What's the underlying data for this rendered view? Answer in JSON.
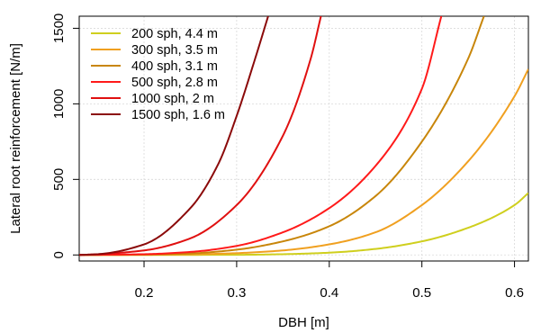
{
  "chart_data": {
    "type": "line",
    "title": "",
    "xlabel": "DBH [m]",
    "ylabel": "Lateral root reinforcement [N/m]",
    "xlim": [
      0.13,
      0.615
    ],
    "ylim": [
      -40,
      1580
    ],
    "x_ticks": [
      0.2,
      0.3,
      0.4,
      0.5,
      0.6
    ],
    "y_ticks": [
      0,
      500,
      1000,
      1500
    ],
    "grid": true,
    "legend_position": "top-left",
    "series": [
      {
        "name": "200 sph, 4.4 m",
        "color": "#cfcf1e",
        "x": [
          0.13,
          0.3,
          0.35,
          0.4,
          0.45,
          0.5,
          0.55,
          0.6,
          0.615
        ],
        "y": [
          0,
          1,
          5,
          15,
          40,
          90,
          180,
          330,
          410
        ]
      },
      {
        "name": "300 sph, 3.5 m",
        "color": "#f0a020",
        "x": [
          0.13,
          0.2,
          0.25,
          0.3,
          0.35,
          0.4,
          0.45,
          0.5,
          0.55,
          0.6,
          0.615
        ],
        "y": [
          0,
          1,
          4,
          12,
          30,
          70,
          150,
          330,
          620,
          1050,
          1230
        ]
      },
      {
        "name": "400 sph, 3.1 m",
        "color": "#c8860a",
        "x": [
          0.13,
          0.2,
          0.25,
          0.3,
          0.35,
          0.4,
          0.45,
          0.5,
          0.55,
          0.567
        ],
        "y": [
          0,
          2,
          10,
          35,
          90,
          190,
          390,
          750,
          1300,
          1580
        ]
      },
      {
        "name": "500 sph, 2.8 m",
        "color": "#ff1a1a",
        "x": [
          0.13,
          0.2,
          0.25,
          0.3,
          0.35,
          0.4,
          0.45,
          0.5,
          0.521
        ],
        "y": [
          0,
          5,
          20,
          60,
          150,
          310,
          590,
          1100,
          1580
        ]
      },
      {
        "name": "1000 sph, 2 m",
        "color": "#e01010",
        "x": [
          0.13,
          0.15,
          0.2,
          0.25,
          0.3,
          0.35,
          0.38,
          0.391
        ],
        "y": [
          0,
          5,
          30,
          110,
          330,
          790,
          1300,
          1580
        ]
      },
      {
        "name": "1500 sph, 1.6 m",
        "color": "#8b0a0a",
        "x": [
          0.13,
          0.15,
          0.2,
          0.25,
          0.28,
          0.3,
          0.32,
          0.334
        ],
        "y": [
          0,
          5,
          70,
          310,
          600,
          920,
          1300,
          1580
        ]
      }
    ]
  }
}
